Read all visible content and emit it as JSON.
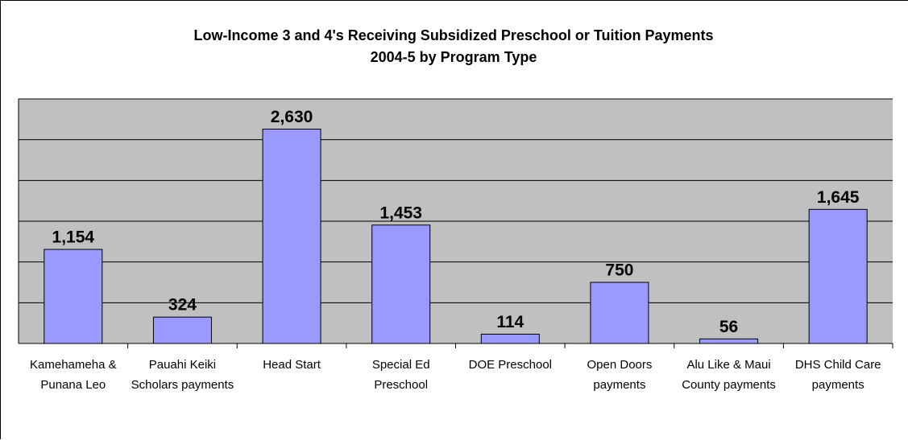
{
  "chart_data": {
    "type": "bar",
    "title": "Low-Income 3 and 4's Receiving Subsidized Preschool or Tuition Payments",
    "subtitle": "2004-5 by Program Type",
    "categories": [
      "Kamehameha & Punana Leo",
      "Pauahi Keiki Scholars payments",
      "Head Start",
      "Special Ed Preschool",
      "DOE Preschool",
      "Open Doors payments",
      "Alu Like & Maui County payments",
      "DHS Child Care payments"
    ],
    "values": [
      1154,
      324,
      2630,
      1453,
      114,
      750,
      56,
      1645
    ],
    "value_labels": [
      "1,154",
      "324",
      "2,630",
      "1,453",
      "114",
      "750",
      "56",
      "1,645"
    ],
    "color": "#9999ff",
    "ylim": [
      0,
      3000
    ],
    "yticks": [
      0,
      500,
      1000,
      1500,
      2000,
      2500,
      3000
    ],
    "grid": true
  }
}
